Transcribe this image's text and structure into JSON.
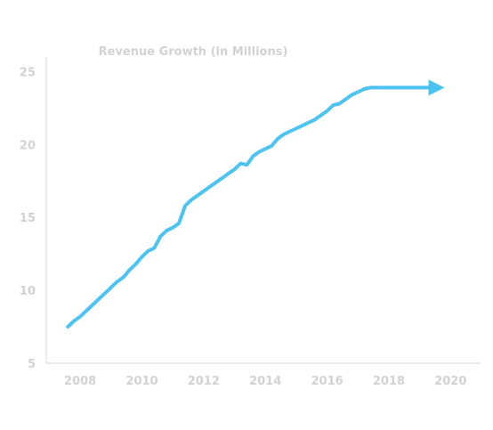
{
  "chart_data": {
    "type": "line",
    "title": "Revenue Growth (in Millions)",
    "xlabel": "",
    "ylabel": "",
    "xlim": [
      2006.9,
      2021.0
    ],
    "ylim": [
      5,
      26
    ],
    "x_ticks": [
      2008,
      2010,
      2012,
      2014,
      2016,
      2018,
      2020
    ],
    "x_tick_labels": [
      "2008",
      "2010",
      "2012",
      "2014",
      "2016",
      "2018",
      "2020"
    ],
    "y_ticks": [
      5,
      10,
      15,
      20,
      25
    ],
    "y_tick_labels": [
      "5",
      "10",
      "15",
      "20",
      "25"
    ],
    "grid": false,
    "series": [
      {
        "x": [
          2007.6,
          2007.8,
          2008.0,
          2008.2,
          2008.4,
          2008.6,
          2008.8,
          2009.0,
          2009.2,
          2009.4,
          2009.6,
          2009.8,
          2010.0,
          2010.2,
          2010.4,
          2010.6,
          2010.8,
          2011.0,
          2011.2,
          2011.4,
          2011.6,
          2011.8,
          2012.0,
          2012.2,
          2012.4,
          2012.6,
          2012.8,
          2013.0,
          2013.2,
          2013.4,
          2013.6,
          2013.8,
          2014.0,
          2014.2,
          2014.4,
          2014.6,
          2014.8,
          2015.0,
          2015.2,
          2015.4,
          2015.6,
          2015.8,
          2016.0,
          2016.2,
          2016.4,
          2016.6,
          2016.8,
          2017.0,
          2017.2,
          2017.4,
          2017.6,
          2017.8,
          2018.0,
          2018.2,
          2018.4,
          2018.6,
          2018.8,
          2019.0,
          2019.2,
          2019.4,
          2019.6
        ],
        "values": [
          7.5,
          7.9,
          8.2,
          8.6,
          9.0,
          9.4,
          9.8,
          10.2,
          10.6,
          10.9,
          11.4,
          11.8,
          12.3,
          12.7,
          12.9,
          13.7,
          14.1,
          14.3,
          14.6,
          15.8,
          16.2,
          16.5,
          16.8,
          17.1,
          17.4,
          17.7,
          18.0,
          18.3,
          18.7,
          18.6,
          19.2,
          19.5,
          19.7,
          19.9,
          20.4,
          20.7,
          20.9,
          21.1,
          21.3,
          21.5,
          21.7,
          22.0,
          22.3,
          22.7,
          22.8,
          23.1,
          23.4,
          23.6,
          23.8,
          23.9,
          23.9,
          23.9,
          23.9,
          23.9,
          23.9,
          23.9,
          23.9,
          23.9,
          23.9,
          23.9,
          23.9
        ],
        "color": "#4cc3f1"
      }
    ],
    "colors": {
      "line": "#4cc3f1",
      "axis": "#ececec",
      "text": "#d2d2d2"
    }
  }
}
